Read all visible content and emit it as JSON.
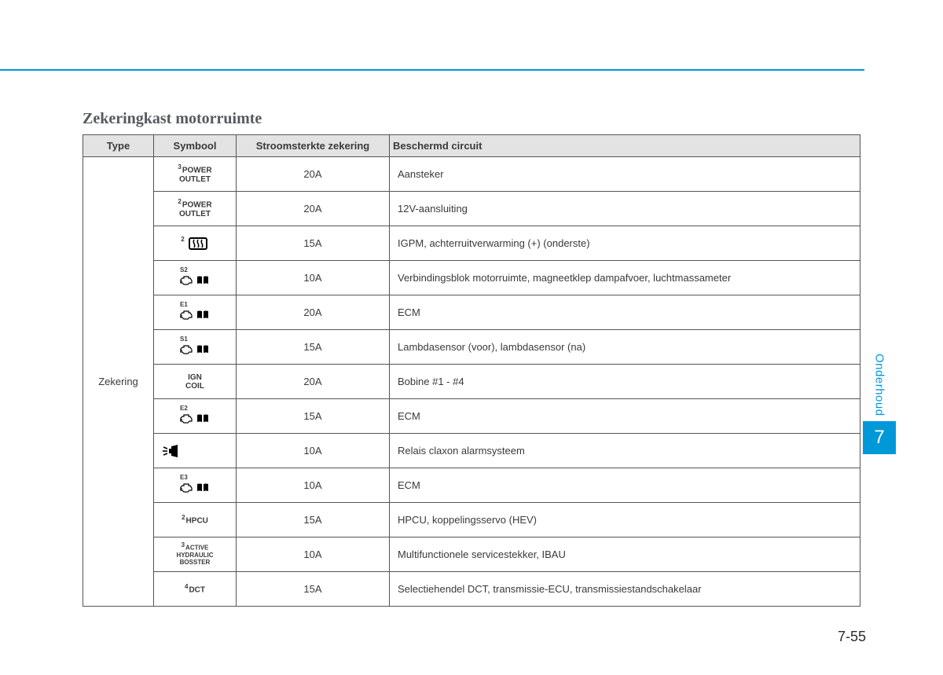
{
  "page": {
    "title": "Zekeringkast motorruimte",
    "sideLabel": "Onderhoud",
    "chapterNumber": "7",
    "pageNumber": "7-55"
  },
  "colors": {
    "accent": "#0098d8",
    "headerBg": "#e3e3e3",
    "border": "#555555",
    "text": "#3a3a3a",
    "titleText": "#555a5e"
  },
  "table": {
    "columns": [
      "Type",
      "Symbool",
      "Stroomsterkte zekering",
      "Beschermd circuit"
    ],
    "typeLabel": "Zekering",
    "rows": [
      {
        "symbolKind": "text",
        "sup": "3",
        "lines": [
          "POWER",
          "OUTLET"
        ],
        "rating": "20A",
        "desc": "Aansteker"
      },
      {
        "symbolKind": "text",
        "sup": "2",
        "lines": [
          "POWER",
          "OUTLET"
        ],
        "rating": "20A",
        "desc": "12V-aansluiting"
      },
      {
        "symbolKind": "defog",
        "sup": "2",
        "rating": "15A",
        "desc": "IGPM, achterruitverwarming (+) (onderste)"
      },
      {
        "symbolKind": "ecm",
        "tag": "S2",
        "rating": "10A",
        "desc": "Verbindingsblok motorruimte, magneetklep dampafvoer, luchtmassameter"
      },
      {
        "symbolKind": "ecm",
        "tag": "E1",
        "rating": "20A",
        "desc": "ECM"
      },
      {
        "symbolKind": "ecm",
        "tag": "S1",
        "rating": "15A",
        "desc": "Lambdasensor (voor), lambdasensor (na)"
      },
      {
        "symbolKind": "text",
        "lines": [
          "IGN",
          "COIL"
        ],
        "rating": "20A",
        "desc": "Bobine #1 - #4"
      },
      {
        "symbolKind": "ecm",
        "tag": "E2",
        "rating": "15A",
        "desc": "ECM"
      },
      {
        "symbolKind": "horn",
        "rating": "10A",
        "desc": "Relais claxon alarmsysteem"
      },
      {
        "symbolKind": "ecm",
        "tag": "E3",
        "rating": "10A",
        "desc": "ECM"
      },
      {
        "symbolKind": "text",
        "sup": "2",
        "lines": [
          "HPCU"
        ],
        "rating": "15A",
        "desc": "HPCU, koppelingsservo (HEV)"
      },
      {
        "symbolKind": "text",
        "sup": "3",
        "lines": [
          "ACTIVE",
          "HYDRAULIC",
          "BOSSTER"
        ],
        "small": true,
        "rating": "10A",
        "desc": "Multifunctionele servicestekker, IBAU"
      },
      {
        "symbolKind": "text",
        "sup": "4",
        "lines": [
          "DCT"
        ],
        "rating": "15A",
        "desc": "Selectiehendel DCT, transmissie-ECU, transmissiestandschakelaar"
      }
    ]
  }
}
